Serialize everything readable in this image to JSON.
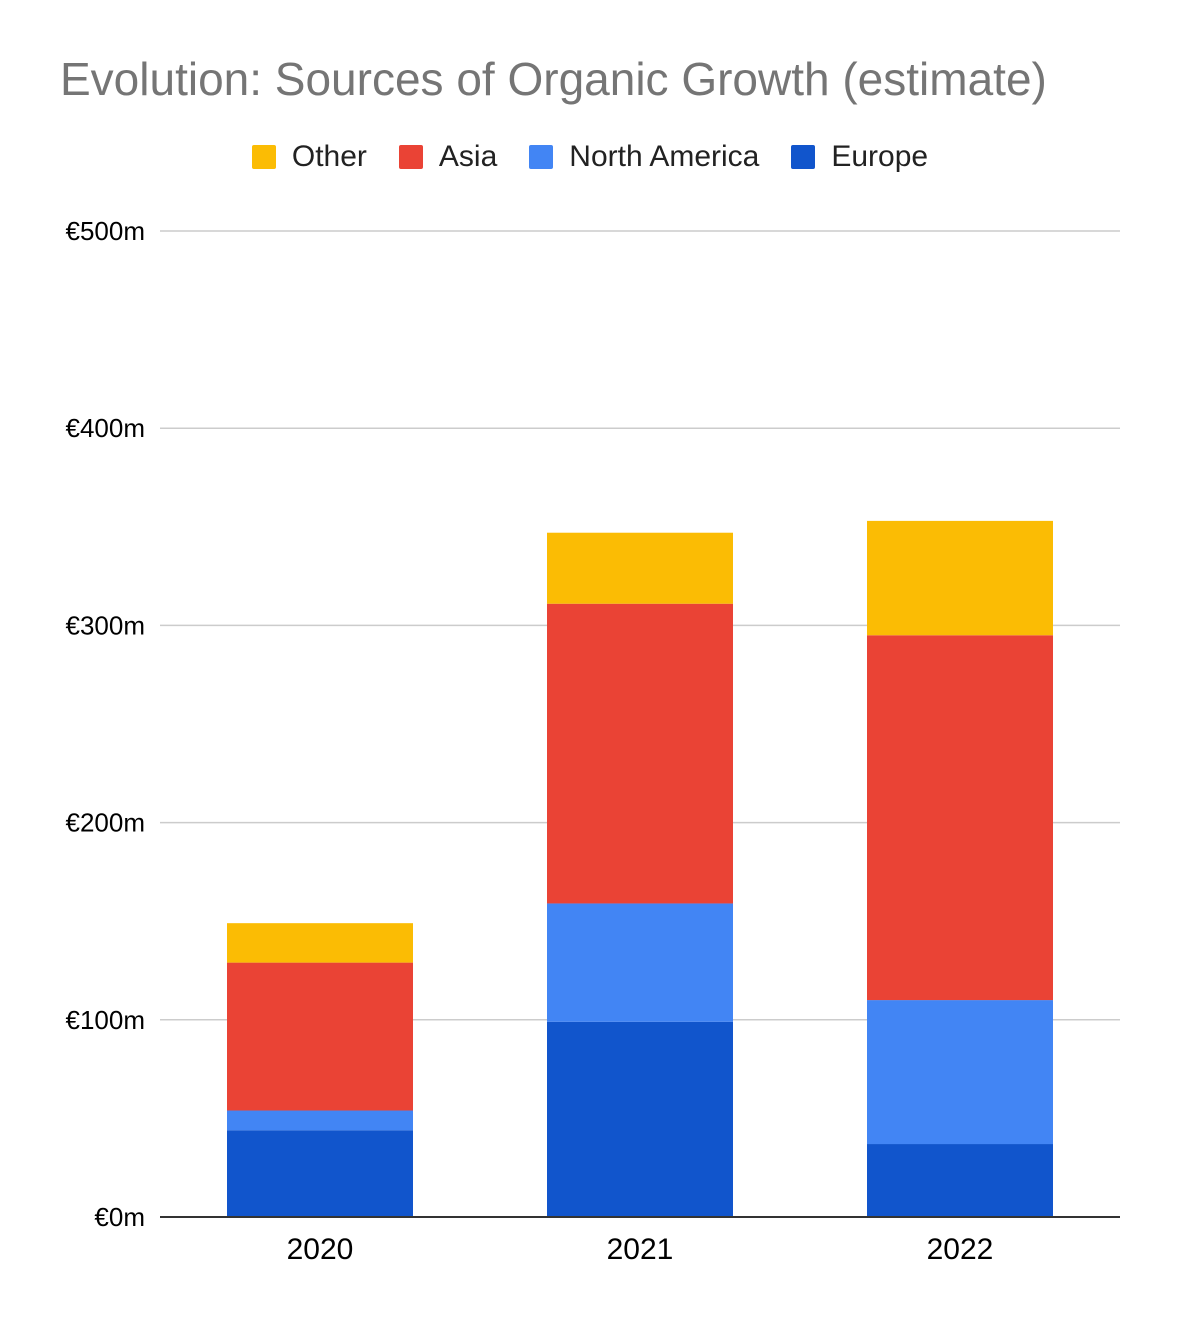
{
  "chart_data": {
    "type": "bar",
    "stacked": true,
    "title": "Evolution: Sources of Organic Growth (estimate)",
    "categories": [
      "2020",
      "2021",
      "2022"
    ],
    "series": [
      {
        "name": "Europe",
        "color": "#1155cc",
        "values": [
          44,
          99,
          37
        ]
      },
      {
        "name": "North America",
        "color": "#4285f4",
        "values": [
          10,
          60,
          73
        ]
      },
      {
        "name": "Asia",
        "color": "#ea4335",
        "values": [
          75,
          152,
          185
        ]
      },
      {
        "name": "Other",
        "color": "#fbbc04",
        "values": [
          20,
          36,
          58
        ]
      }
    ],
    "legend_order": [
      "Other",
      "Asia",
      "North America",
      "Europe"
    ],
    "legend_position": "top",
    "ylim": [
      0,
      500
    ],
    "yticks": [
      0,
      100,
      200,
      300,
      400,
      500
    ],
    "ytick_labels": [
      "€0m",
      "€100m",
      "€200m",
      "€300m",
      "€400m",
      "€500m"
    ],
    "grid": true,
    "xlabel": "",
    "ylabel": ""
  }
}
